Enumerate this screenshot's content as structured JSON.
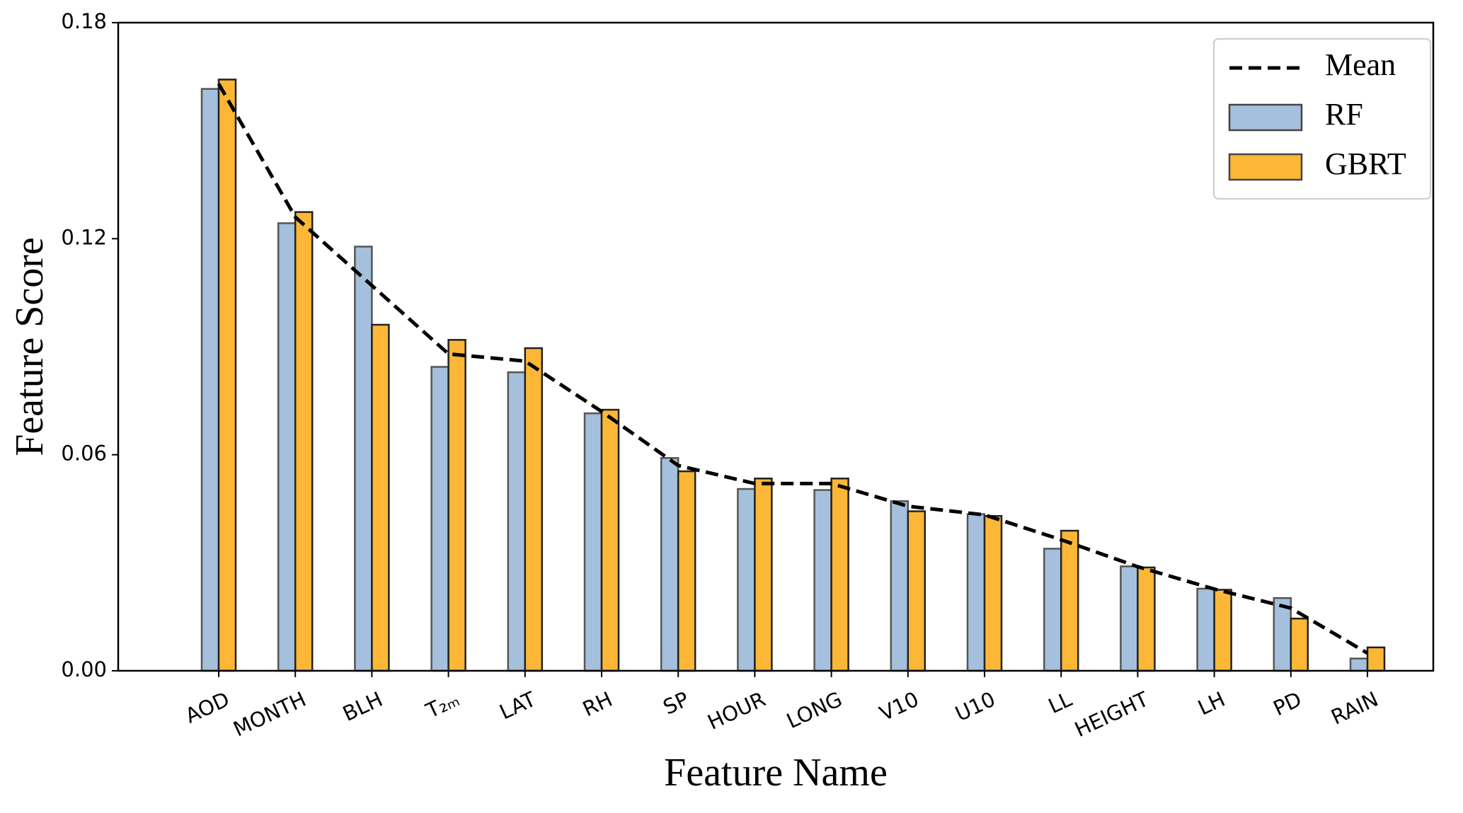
{
  "chart_data": {
    "type": "bar",
    "xlabel": "Feature Name",
    "ylabel": "Feature Score",
    "categories": [
      "AOD",
      "MONTH",
      "BLH",
      "T₂ₘ",
      "LAT",
      "RH",
      "SP",
      "HOUR",
      "LONG",
      "V10",
      "U10",
      "LL",
      "HEIGHT",
      "LH",
      "PD",
      "RAIN"
    ],
    "series": [
      {
        "name": "Mean",
        "type": "line",
        "color": "#000000",
        "values": [
          0.163,
          0.126,
          0.107,
          0.088,
          0.086,
          0.072,
          0.057,
          0.052,
          0.052,
          0.0457,
          0.0433,
          0.0364,
          0.0289,
          0.0227,
          0.0174,
          0.0049
        ]
      },
      {
        "name": "RF",
        "type": "bar",
        "color": "#a5c0dc",
        "values": [
          0.1616,
          0.1243,
          0.1178,
          0.0844,
          0.0829,
          0.0715,
          0.0591,
          0.0505,
          0.0502,
          0.0471,
          0.0435,
          0.0339,
          0.029,
          0.0228,
          0.0202,
          0.0034
        ]
      },
      {
        "name": "GBRT",
        "type": "bar",
        "color": "#fbb735",
        "values": [
          0.1642,
          0.1274,
          0.0961,
          0.0919,
          0.0896,
          0.0725,
          0.0554,
          0.0534,
          0.0534,
          0.0443,
          0.043,
          0.0389,
          0.0287,
          0.0225,
          0.0145,
          0.0065
        ]
      }
    ],
    "ylim": [
      0,
      0.18
    ],
    "yticks": [
      {
        "value": 0,
        "label": "0.00"
      },
      0.06,
      0.12,
      0.18
    ],
    "grid": false,
    "legend": "upper right"
  }
}
